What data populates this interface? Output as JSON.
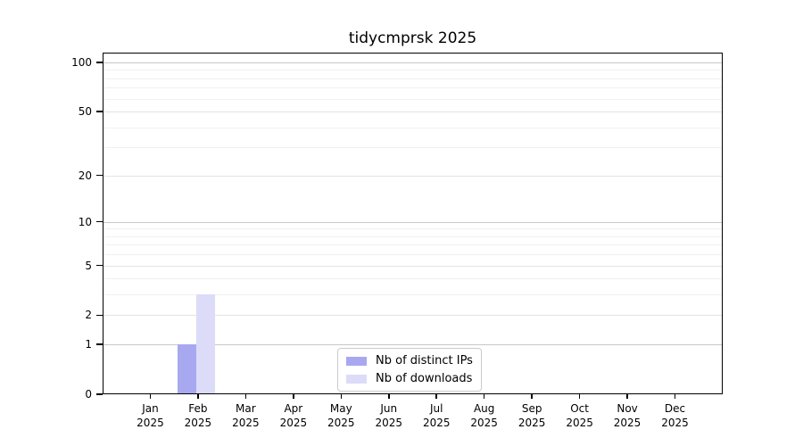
{
  "figure_title": "tidycmprsk 2025",
  "chart_data": {
    "type": "bar",
    "title": "tidycmprsk 2025",
    "categories": [
      "Jan 2025",
      "Feb 2025",
      "Mar 2025",
      "Apr 2025",
      "May 2025",
      "Jun 2025",
      "Jul 2025",
      "Aug 2025",
      "Sep 2025",
      "Oct 2025",
      "Nov 2025",
      "Dec 2025"
    ],
    "series": [
      {
        "name": "Nb of distinct IPs",
        "color": "#a8a8f0",
        "values": [
          0,
          1,
          0,
          0,
          0,
          0,
          0,
          0,
          0,
          0,
          0,
          0
        ]
      },
      {
        "name": "Nb of downloads",
        "color": "#dcdcf8",
        "values": [
          0,
          3,
          0,
          0,
          0,
          0,
          0,
          0,
          0,
          0,
          0,
          0
        ]
      }
    ],
    "xlabel": "",
    "ylabel": "",
    "y_scale": "log1p",
    "ylim": [
      0,
      100
    ],
    "y_tick_values": [
      0,
      1,
      2,
      5,
      10,
      20,
      50,
      100
    ],
    "y_emphasis_grid_values": [
      1,
      10,
      100
    ],
    "y_minor_grid_values": [
      3,
      4,
      6,
      7,
      8,
      9,
      30,
      40,
      60,
      70,
      80,
      90
    ],
    "grid": "horizontal",
    "legend_position": "bottom-center"
  },
  "colors": {
    "bar_distinct_ips": "#a8a8f0",
    "bar_downloads": "#dcdcf8",
    "grid_emphasis": "#c8c8c8",
    "grid_major": "#e3e3e6",
    "grid_minor": "#f0f0f2",
    "spine": "#000000",
    "text": "#000000",
    "legend_border": "#cbcbcb"
  }
}
